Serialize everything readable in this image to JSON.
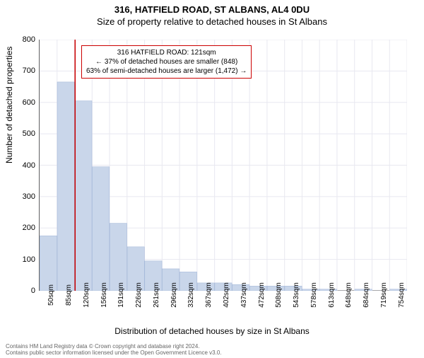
{
  "titles": {
    "address": "316, HATFIELD ROAD, ST ALBANS, AL4 0DU",
    "subtitle": "Size of property relative to detached houses in St Albans"
  },
  "chart": {
    "type": "histogram",
    "categories": [
      "50sqm",
      "85sqm",
      "120sqm",
      "156sqm",
      "191sqm",
      "226sqm",
      "261sqm",
      "296sqm",
      "332sqm",
      "367sqm",
      "402sqm",
      "437sqm",
      "472sqm",
      "508sqm",
      "543sqm",
      "578sqm",
      "613sqm",
      "648sqm",
      "684sqm",
      "719sqm",
      "754sqm"
    ],
    "values": [
      175,
      665,
      605,
      395,
      215,
      140,
      95,
      70,
      60,
      25,
      25,
      20,
      15,
      15,
      15,
      5,
      5,
      0,
      5,
      0,
      5
    ],
    "bar_fill": "#c9d6ea",
    "bar_stroke": "#9fb4d6",
    "background": "#ffffff",
    "grid_color": "#e8e8f0",
    "ylim": [
      0,
      800
    ],
    "ytick_step": 100,
    "yaxis_title": "Number of detached properties",
    "xaxis_title": "Distribution of detached houses by size in St Albans",
    "marker": {
      "position_index": 2.03,
      "color": "#cc0000"
    }
  },
  "annotation": {
    "line1": "316 HATFIELD ROAD: 121sqm",
    "line2": "← 37% of detached houses are smaller (848)",
    "line3": "63% of semi-detached houses are larger (1,472) →",
    "border_color": "#cc0000"
  },
  "footnote": {
    "line1": "Contains HM Land Registry data © Crown copyright and database right 2024.",
    "line2": "Contains public sector information licensed under the Open Government Licence v3.0."
  }
}
